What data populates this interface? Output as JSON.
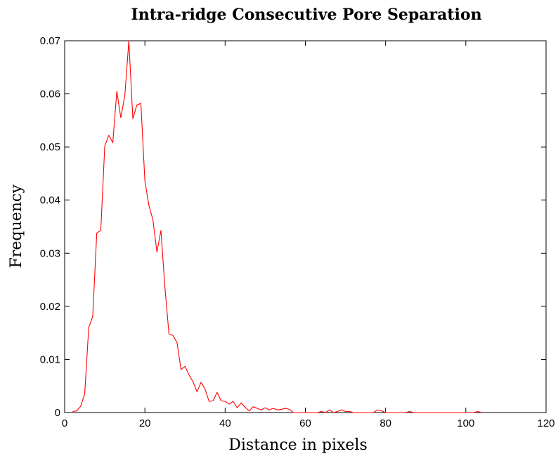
{
  "chart_data": {
    "type": "line",
    "title": "Intra-ridge Consecutive Pore Separation",
    "xlabel": "Distance in pixels",
    "ylabel": "Frequency",
    "xlim": [
      0,
      120
    ],
    "ylim": [
      0,
      0.07
    ],
    "x_ticks": [
      0,
      20,
      40,
      60,
      80,
      100,
      120
    ],
    "x_tick_labels": [
      "0",
      "20",
      "40",
      "60",
      "80",
      "100",
      "120"
    ],
    "y_ticks": [
      0,
      0.01,
      0.02,
      0.03,
      0.04,
      0.05,
      0.06,
      0.07
    ],
    "y_tick_labels": [
      "0",
      "0.01",
      "0.02",
      "0.03",
      "0.04",
      "0.05",
      "0.06",
      "0.07"
    ],
    "grid": false,
    "legend": "none",
    "series": [
      {
        "color": "#ff0000",
        "x": [
          2,
          3,
          4,
          5,
          6,
          7,
          8,
          9,
          10,
          11,
          12,
          13,
          14,
          15,
          16,
          17,
          18,
          19,
          20,
          21,
          22,
          23,
          24,
          25,
          26,
          27,
          28,
          29,
          30,
          31,
          32,
          33,
          34,
          35,
          36,
          37,
          38,
          39,
          40,
          41,
          42,
          43,
          44,
          45,
          46,
          47,
          48,
          49,
          50,
          51,
          52,
          53,
          54,
          55,
          56,
          57,
          58,
          59,
          60,
          61,
          62,
          63,
          64,
          65,
          66,
          67,
          68,
          69,
          70,
          71,
          72,
          73,
          74,
          75,
          76,
          77,
          78,
          79,
          80,
          81,
          82,
          83,
          84,
          85,
          86,
          87,
          88,
          89,
          90,
          91,
          92,
          93,
          94,
          95,
          96,
          97,
          98,
          99,
          100,
          101,
          102,
          103,
          104
        ],
        "y": [
          0.0002,
          0.0003,
          0.0012,
          0.0035,
          0.016,
          0.0181,
          0.0338,
          0.0343,
          0.0502,
          0.0522,
          0.0508,
          0.0605,
          0.0555,
          0.0597,
          0.07,
          0.0553,
          0.0579,
          0.0582,
          0.0436,
          0.039,
          0.0363,
          0.0302,
          0.0343,
          0.0235,
          0.0148,
          0.0145,
          0.0132,
          0.0081,
          0.0087,
          0.0071,
          0.0058,
          0.0039,
          0.0057,
          0.0044,
          0.0021,
          0.0022,
          0.0038,
          0.0022,
          0.0021,
          0.0016,
          0.0021,
          0.0009,
          0.0018,
          0.001,
          0.0003,
          0.0011,
          0.0008,
          0.0005,
          0.0009,
          0.0005,
          0.0008,
          0.0005,
          0.0006,
          0.0008,
          0.0006,
          0.0,
          0.0,
          0.0,
          0.0,
          0.0,
          0.0,
          0.0,
          0.0002,
          0.0,
          0.0005,
          0.0,
          0.0002,
          0.0005,
          0.0002,
          0.0002,
          0.0,
          0.0,
          0.0,
          0.0,
          0.0,
          0.0,
          0.0005,
          0.0003,
          0.0,
          0.0,
          0.0,
          0.0,
          0.0,
          0.0,
          0.0002,
          0.0,
          0.0,
          0.0,
          0.0,
          0.0,
          0.0,
          0.0,
          0.0,
          0.0,
          0.0,
          0.0,
          0.0,
          0.0,
          0.0,
          0.0,
          0.0,
          0.0002,
          0.0
        ]
      }
    ]
  }
}
